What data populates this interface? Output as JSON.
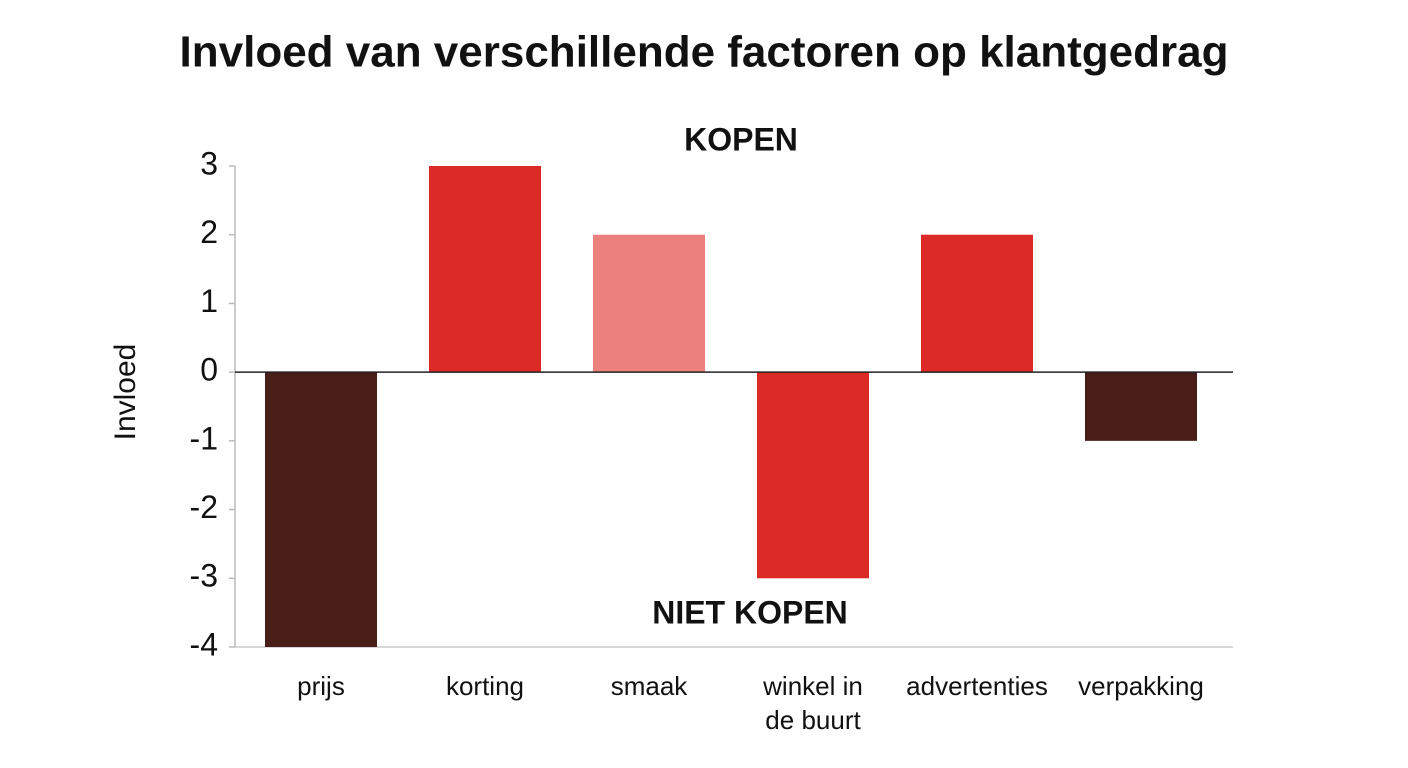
{
  "chart_data": {
    "type": "bar",
    "title": "Invloed van verschillende factoren op klantgedrag",
    "ylabel": "Invloed",
    "annotations": [
      "KOPEN",
      "NIET KOPEN"
    ],
    "categories": [
      "prijs",
      "korting",
      "smaak",
      "winkel in de buurt",
      "advertenties",
      "verpakking"
    ],
    "values": [
      -4,
      3,
      2,
      -3,
      2,
      -1
    ],
    "colors": [
      "#4a1e18",
      "#dc2a27",
      "#ec807c",
      "#dc2a27",
      "#dc2a27",
      "#4a1e18"
    ],
    "ylim": [
      -4,
      3
    ],
    "yticks": [
      -4,
      -3,
      -2,
      -1,
      0,
      1,
      2,
      3
    ],
    "grid": false
  }
}
